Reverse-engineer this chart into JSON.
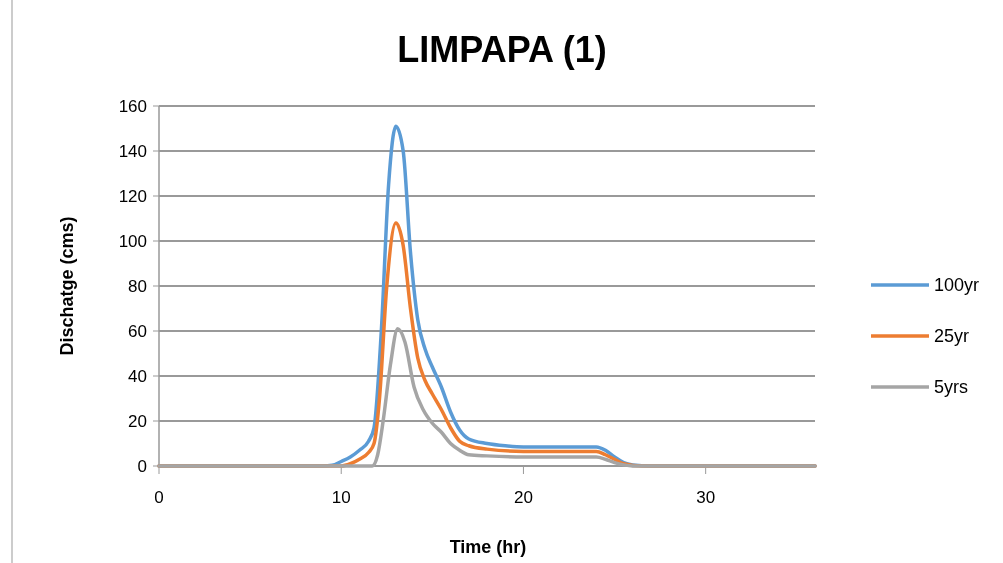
{
  "chart_data": {
    "type": "line",
    "title": "LIMPAPA (1)",
    "xlabel": "Time (hr)",
    "ylabel": "Dischatge  (cms)",
    "xlim": [
      0,
      36
    ],
    "xticks": [
      0,
      10,
      20,
      30
    ],
    "ylim": [
      0,
      160
    ],
    "yticks": [
      0,
      20,
      40,
      60,
      80,
      100,
      120,
      140,
      160
    ],
    "grid": "y",
    "legend": "right",
    "marker": "none",
    "line_style": "solid",
    "series": [
      {
        "name": "100yr",
        "color": "#5b9bd5",
        "x": [
          0,
          9,
          9.5,
          10,
          10.5,
          11,
          11.5,
          11.8,
          12.2,
          12.6,
          13,
          13.4,
          13.8,
          14.2,
          14.6,
          15,
          15.5,
          16,
          16.5,
          17,
          18,
          19,
          20,
          22,
          24,
          24.5,
          25,
          25.5,
          26,
          27,
          36
        ],
        "values": [
          0,
          0,
          0.3,
          2,
          4,
          7,
          11,
          17,
          60,
          125,
          151,
          140,
          95,
          65,
          52,
          44,
          35,
          24,
          16,
          12,
          10,
          9,
          8.5,
          8.5,
          8.5,
          7,
          4,
          1.5,
          0.5,
          0,
          0
        ]
      },
      {
        "name": "25yr",
        "color": "#ed7d31",
        "x": [
          0,
          10,
          10.5,
          11,
          11.5,
          11.8,
          12.1,
          12.5,
          13,
          13.4,
          13.8,
          14.2,
          14.6,
          15,
          15.5,
          16,
          16.5,
          17,
          18,
          20,
          22,
          24,
          24.5,
          25,
          25.5,
          26.5,
          36
        ],
        "values": [
          0,
          0,
          1,
          3,
          6,
          10,
          30,
          80,
          108,
          98,
          70,
          48,
          38,
          32,
          25,
          17,
          11,
          9,
          7.5,
          6.5,
          6.5,
          6.5,
          5,
          3,
          1,
          0,
          0
        ]
      },
      {
        "name": "5yrs",
        "color": "#a5a5a5",
        "x": [
          0,
          11.7,
          12,
          12.3,
          12.7,
          13.1,
          13.5,
          14,
          14.5,
          15,
          15.5,
          16,
          16.5,
          17,
          18,
          20,
          24,
          24.5,
          25,
          25.5,
          26,
          36
        ],
        "values": [
          0,
          0,
          5,
          20,
          45,
          61,
          55,
          35,
          25,
          19,
          15,
          10,
          7,
          5,
          4.5,
          4,
          4,
          3,
          1.5,
          0.5,
          0,
          0
        ]
      }
    ]
  }
}
